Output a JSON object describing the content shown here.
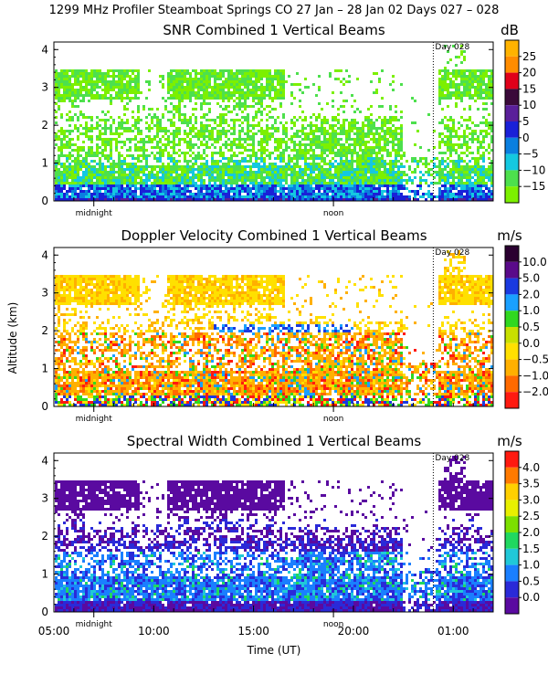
{
  "header": {
    "title": "1299 MHz Profiler  Steamboat Springs CO  27 Jan – 28 Jan 02 Days 027 – 028"
  },
  "shared": {
    "ylabel": "Altitude (km)",
    "xlabel": "Time (UT)",
    "midnight_label": "midnight",
    "noon_label": "noon",
    "day_marker_label": "Day 028",
    "x_tick_labels": [
      "05:00",
      "10:00",
      "15:00",
      "20:00",
      "01:00"
    ],
    "y_tick_labels": [
      "0",
      "1",
      "2",
      "3",
      "4"
    ]
  },
  "chart_data": [
    {
      "type": "heatmap",
      "title": "SNR Combined 1 Vertical Beams",
      "unit": "dB",
      "field": "snr",
      "xlabel": "",
      "ylabel": "",
      "xlim_hours_since_0500UT": [
        0,
        22
      ],
      "ylim_km": [
        0,
        4.2
      ],
      "colorbar_ticks": [
        "25",
        "20",
        "15",
        "10",
        "5",
        "0",
        "−5",
        "−10",
        "−15"
      ],
      "colorbar_colors": [
        "#ffb300",
        "#ff8c00",
        "#e0001a",
        "#3a0a3a",
        "#5a1f9a",
        "#1a20d8",
        "#0a7fe0",
        "#14c8e0",
        "#4de04d",
        "#7cf000"
      ],
      "show_midnight_noon": true,
      "show_time_ticks": false
    },
    {
      "type": "heatmap",
      "title": "Doppler Velocity Combined 1 Vertical Beams",
      "unit": "m/s",
      "field": "velocity",
      "xlabel": "",
      "ylabel": "Altitude (km)",
      "xlim_hours_since_0500UT": [
        0,
        22
      ],
      "ylim_km": [
        0,
        4.2
      ],
      "colorbar_ticks": [
        "10.0",
        "5.0",
        "2.0",
        "1.0",
        "0.5",
        "0.0",
        "−0.5",
        "−1.0",
        "−2.0"
      ],
      "colorbar_colors": [
        "#2a0030",
        "#5a0a8a",
        "#1a3ae0",
        "#1aa0ff",
        "#30d820",
        "#c8e000",
        "#ffe000",
        "#ffb000",
        "#ff6a00",
        "#ff1a10"
      ],
      "show_midnight_noon": true,
      "show_time_ticks": false
    },
    {
      "type": "heatmap",
      "title": "Spectral Width Combined 1 Vertical Beams",
      "unit": "m/s",
      "field": "width",
      "xlabel": "Time (UT)",
      "ylabel": "",
      "xlim_hours_since_0500UT": [
        0,
        22
      ],
      "ylim_km": [
        0,
        4.2
      ],
      "colorbar_ticks": [
        "4.0",
        "3.5",
        "3.0",
        "2.5",
        "2.0",
        "1.5",
        "1.0",
        "0.5",
        "0.0"
      ],
      "colorbar_colors": [
        "#ff1a10",
        "#ff7a00",
        "#ffd000",
        "#e8f000",
        "#7ce000",
        "#20d860",
        "#20c8d8",
        "#1a7fff",
        "#2a2ad8",
        "#5a0aa0"
      ],
      "show_midnight_noon": true,
      "show_time_ticks": true
    }
  ]
}
